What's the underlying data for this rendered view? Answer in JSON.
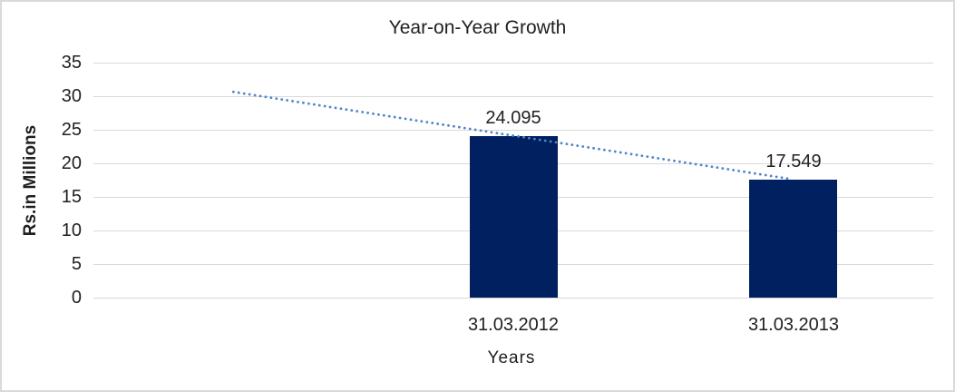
{
  "frame": {
    "background": "#FFFFFF",
    "border_color": "#D9D9D9"
  },
  "chart_data": {
    "type": "bar",
    "title": "Year-on-Year Growth",
    "xlabel": "Years",
    "ylabel": "Rs.in Millions",
    "ylim": [
      0,
      35
    ],
    "yticks": [
      0,
      5,
      10,
      15,
      20,
      25,
      30,
      35
    ],
    "grid": "horizontal",
    "legend": "none",
    "categories": [
      "",
      "31.03.2012",
      "31.03.2013"
    ],
    "values": [
      null,
      24.095,
      17.549
    ],
    "data_labels": [
      "",
      "24.095",
      "17.549"
    ],
    "bar_color": "#002060",
    "gridline_color": "#D9D9D9",
    "text_color": "#1F1F1F",
    "trendline": {
      "type": "linear",
      "style": "dotted",
      "color": "#4E86C6",
      "note": "extends one empty category before first bar, ends at last bar center"
    }
  }
}
